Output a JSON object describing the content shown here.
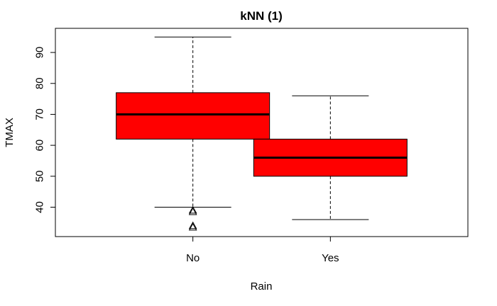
{
  "chart_data": {
    "type": "boxplot",
    "title": "kNN (1)",
    "xlabel": "Rain",
    "ylabel": "TMAX",
    "categories": [
      "No",
      "Yes"
    ],
    "yticks": [
      40,
      50,
      60,
      70,
      80,
      90
    ],
    "ylim": [
      30.5,
      97.8
    ],
    "box_color": "#ff0000",
    "boxes": [
      {
        "category": "No",
        "whisker_low": 40,
        "q1": 62,
        "median": 70,
        "q3": 77,
        "whisker_high": 95,
        "outliers": [
          38.5,
          39,
          33.5,
          34
        ]
      },
      {
        "category": "Yes",
        "whisker_low": 36,
        "q1": 50,
        "median": 56,
        "q3": 62,
        "whisker_high": 76,
        "outliers": []
      }
    ]
  }
}
